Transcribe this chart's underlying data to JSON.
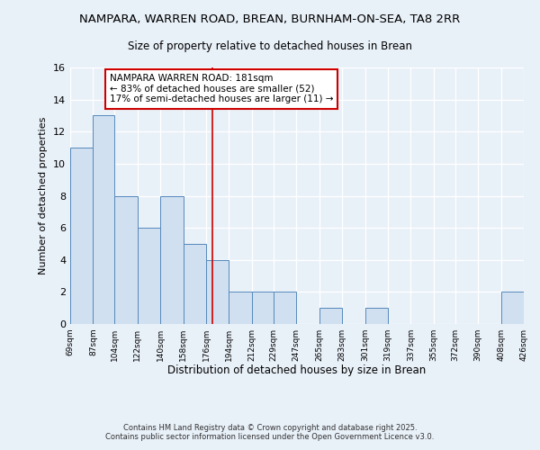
{
  "title": "NAMPARA, WARREN ROAD, BREAN, BURNHAM-ON-SEA, TA8 2RR",
  "subtitle": "Size of property relative to detached houses in Brean",
  "xlabel": "Distribution of detached houses by size in Brean",
  "ylabel": "Number of detached properties",
  "bin_edges": [
    69,
    87,
    104,
    122,
    140,
    158,
    176,
    194,
    212,
    229,
    247,
    265,
    283,
    301,
    319,
    337,
    355,
    372,
    390,
    408,
    426
  ],
  "counts": [
    11,
    13,
    8,
    6,
    8,
    5,
    4,
    2,
    2,
    2,
    0,
    1,
    0,
    1,
    0,
    0,
    0,
    0,
    0,
    2
  ],
  "bar_color": "#d0e0f0",
  "bar_edge_color": "#5588bb",
  "vline_x": 181,
  "vline_color": "#cc0000",
  "annotation_text": "NAMPARA WARREN ROAD: 181sqm\n← 83% of detached houses are smaller (52)\n17% of semi-detached houses are larger (11) →",
  "annotation_box_color": "#ffffff",
  "annotation_box_edge": "#cc0000",
  "ylim": [
    0,
    16
  ],
  "yticks": [
    0,
    2,
    4,
    6,
    8,
    10,
    12,
    14,
    16
  ],
  "footer_text": "Contains HM Land Registry data © Crown copyright and database right 2025.\nContains public sector information licensed under the Open Government Licence v3.0.",
  "bg_color": "#e8f0f8",
  "grid_color": "#ffffff",
  "tick_labels": [
    "69sqm",
    "87sqm",
    "104sqm",
    "122sqm",
    "140sqm",
    "158sqm",
    "176sqm",
    "194sqm",
    "212sqm",
    "229sqm",
    "247sqm",
    "265sqm",
    "283sqm",
    "301sqm",
    "319sqm",
    "337sqm",
    "355sqm",
    "372sqm",
    "390sqm",
    "408sqm",
    "426sqm"
  ]
}
